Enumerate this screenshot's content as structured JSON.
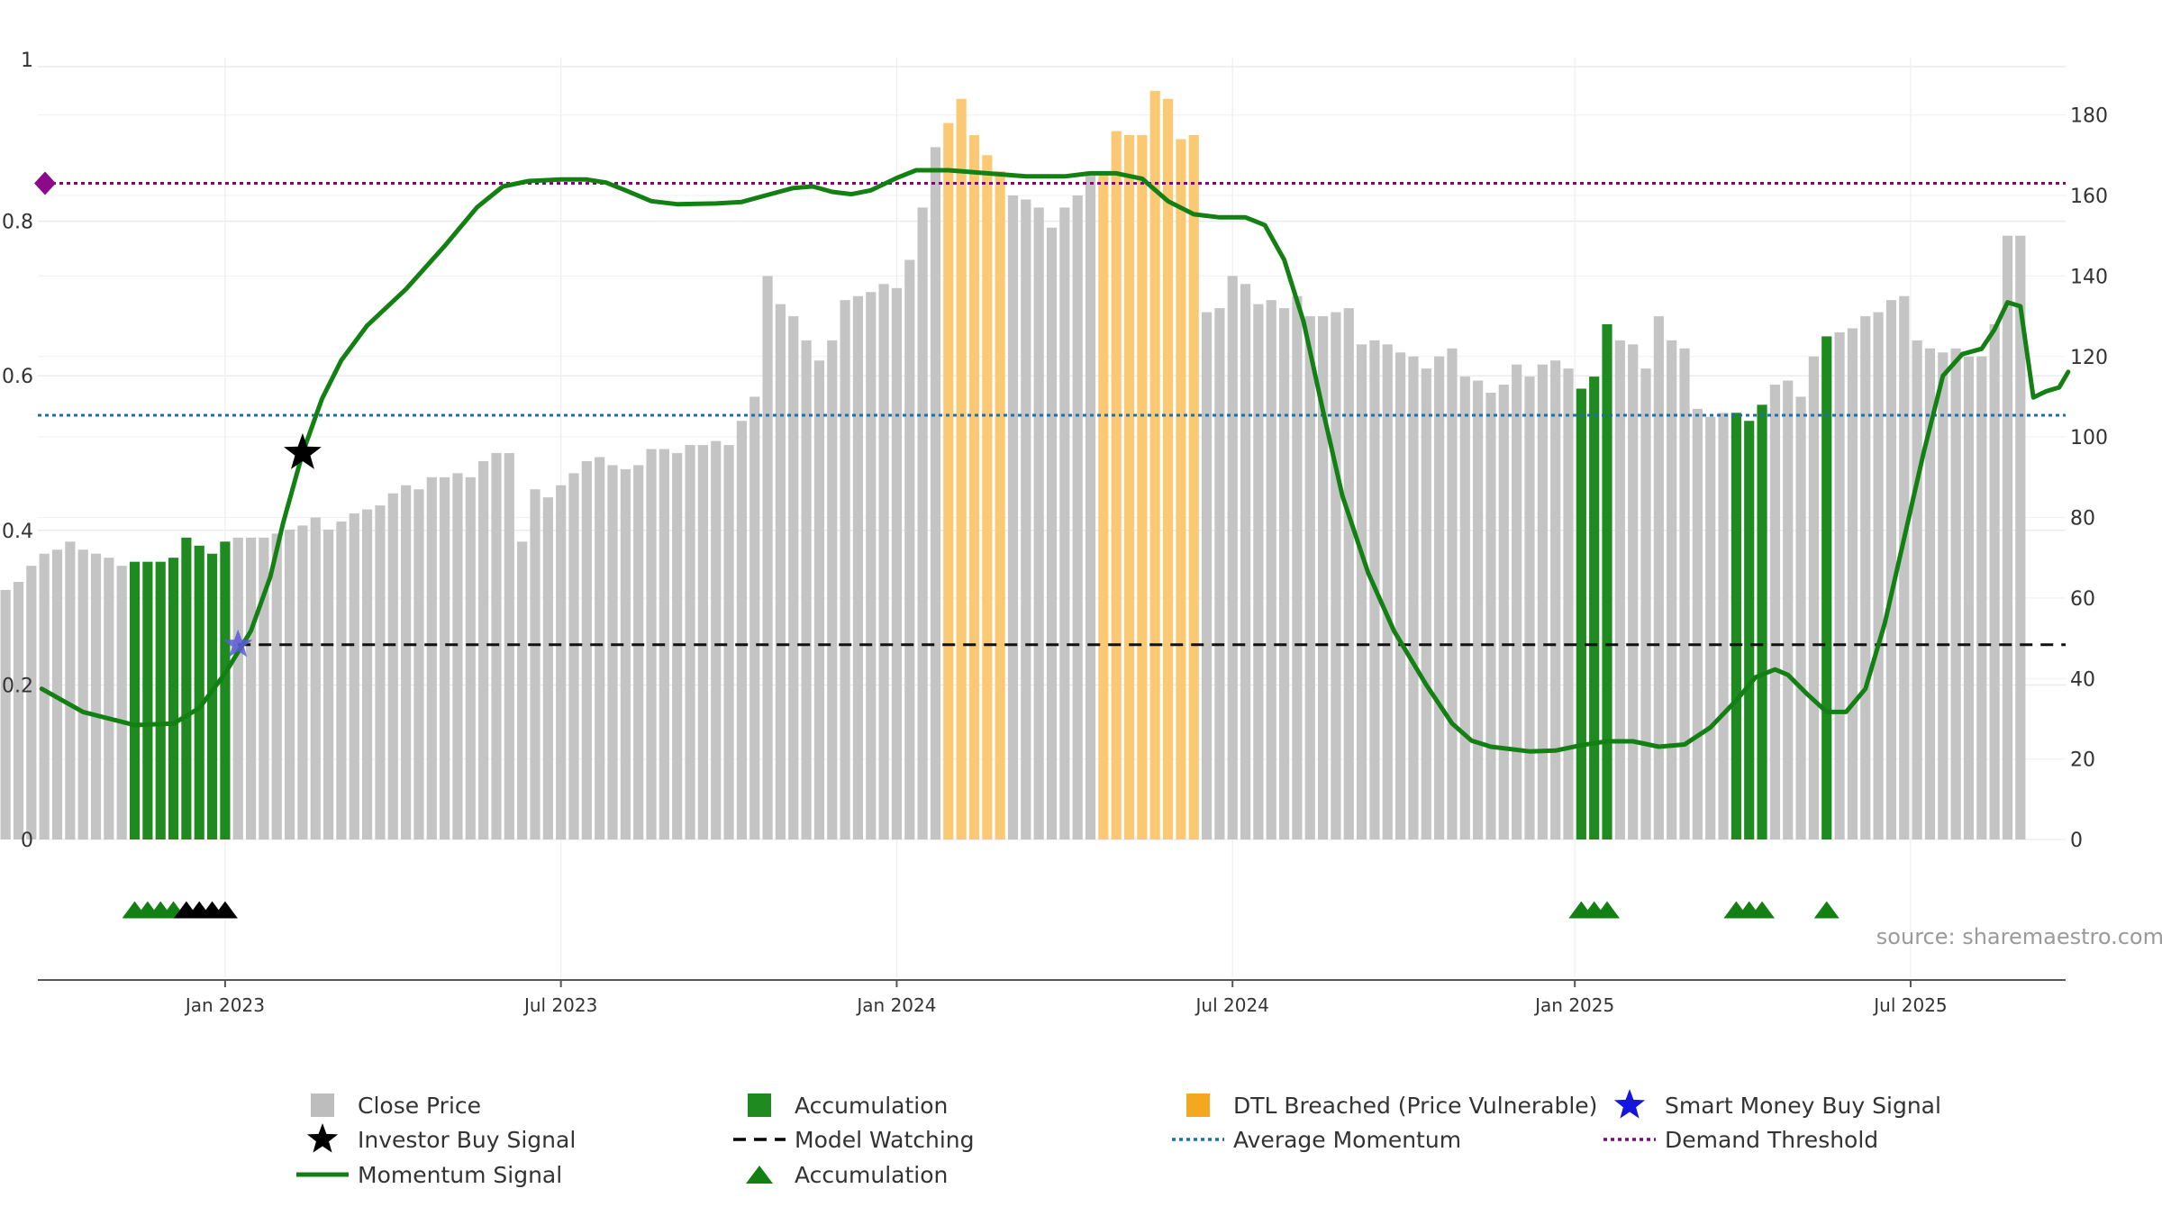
{
  "source_text": "source: sharemaestro.com",
  "chart_data": {
    "type": "bar",
    "left_axis": {
      "ticks": [
        0,
        0.2,
        0.4,
        0.6,
        0.8,
        1
      ],
      "labels": [
        "0",
        "0.2",
        "0.4",
        "0.6",
        "0.8",
        "1"
      ],
      "range": [
        0,
        1
      ]
    },
    "right_axis": {
      "ticks": [
        0,
        20,
        40,
        60,
        80,
        100,
        120,
        140,
        160,
        180
      ],
      "labels": [
        "0",
        "20",
        "40",
        "60",
        "80",
        "100",
        "120",
        "140",
        "160",
        "180"
      ],
      "range": [
        0,
        192
      ]
    },
    "x_ticks": [
      {
        "label": "Jan 2023",
        "week": 21
      },
      {
        "label": "Jul 2023",
        "week": 47
      },
      {
        "label": "Jan 2024",
        "week": 73
      },
      {
        "label": "Jul 2024",
        "week": 99
      },
      {
        "label": "Jan 2025",
        "week": 125.5
      },
      {
        "label": "Jul 2025",
        "week": 151.5
      }
    ],
    "x_range": [
      6.5,
      163.5
    ],
    "close_prices": [
      66,
      66,
      61,
      61,
      62,
      64,
      68,
      71,
      72,
      74,
      72,
      71,
      70,
      68,
      69,
      69,
      69,
      70,
      75,
      73,
      71,
      74,
      75,
      75,
      75,
      76,
      77,
      78,
      80,
      77,
      79,
      81,
      82,
      83,
      86,
      88,
      87,
      90,
      90,
      91,
      90,
      94,
      96,
      96,
      74,
      87,
      85,
      88,
      91,
      94,
      95,
      93,
      92,
      93,
      97,
      97,
      96,
      98,
      98,
      99,
      98,
      104,
      110,
      140,
      133,
      130,
      124,
      119,
      124,
      134,
      135,
      136,
      138,
      137,
      144,
      157,
      172,
      178,
      184,
      175,
      170,
      166,
      160,
      159,
      157,
      152,
      157,
      160,
      166,
      166,
      176,
      175,
      175,
      186,
      184,
      174,
      175,
      131,
      132,
      140,
      138,
      133,
      134,
      132,
      135,
      130,
      130,
      131,
      132,
      123,
      124,
      123,
      121,
      120,
      117,
      120,
      122,
      115,
      114,
      111,
      113,
      118,
      115,
      118,
      119,
      117,
      112,
      115,
      128,
      124,
      123,
      117,
      130,
      124,
      122,
      107,
      105,
      106,
      106,
      104,
      108,
      113,
      114,
      110,
      120,
      125,
      126,
      127,
      130,
      131,
      134,
      135,
      124,
      122,
      121,
      122,
      120,
      120,
      128,
      150,
      150
    ],
    "bar_categories": {
      "accumulation": [
        14,
        15,
        16,
        17,
        18,
        19,
        20,
        21,
        126,
        127,
        128,
        138,
        139,
        140,
        145
      ],
      "dtl_breached": [
        77,
        78,
        79,
        80,
        81,
        89,
        90,
        91,
        92,
        93,
        94,
        95,
        96
      ]
    },
    "momentum_signal": [
      [
        6.8,
        0.195
      ],
      [
        10,
        0.165
      ],
      [
        14,
        0.148
      ],
      [
        17,
        0.15
      ],
      [
        19,
        0.17
      ],
      [
        21,
        0.215
      ],
      [
        23,
        0.27
      ],
      [
        24.5,
        0.34
      ],
      [
        25.5,
        0.41
      ],
      [
        27,
        0.5
      ],
      [
        28.5,
        0.57
      ],
      [
        30,
        0.62
      ],
      [
        32,
        0.665
      ],
      [
        35,
        0.712
      ],
      [
        38,
        0.768
      ],
      [
        40.5,
        0.818
      ],
      [
        42.5,
        0.845
      ],
      [
        44.5,
        0.852
      ],
      [
        47,
        0.854
      ],
      [
        49,
        0.854
      ],
      [
        50.5,
        0.85
      ],
      [
        52,
        0.84
      ],
      [
        54,
        0.826
      ],
      [
        56,
        0.822
      ],
      [
        59,
        0.823
      ],
      [
        61,
        0.825
      ],
      [
        63,
        0.834
      ],
      [
        65,
        0.843
      ],
      [
        66.5,
        0.845
      ],
      [
        68,
        0.838
      ],
      [
        69.5,
        0.835
      ],
      [
        71,
        0.84
      ],
      [
        73,
        0.856
      ],
      [
        74.5,
        0.866
      ],
      [
        77,
        0.866
      ],
      [
        80,
        0.862
      ],
      [
        83,
        0.858
      ],
      [
        86,
        0.858
      ],
      [
        88,
        0.862
      ],
      [
        90,
        0.862
      ],
      [
        92,
        0.855
      ],
      [
        94,
        0.826
      ],
      [
        96,
        0.809
      ],
      [
        98,
        0.805
      ],
      [
        100,
        0.805
      ],
      [
        101.5,
        0.795
      ],
      [
        103,
        0.75
      ],
      [
        104.5,
        0.67
      ],
      [
        106,
        0.555
      ],
      [
        107.5,
        0.445
      ],
      [
        109.5,
        0.345
      ],
      [
        111.5,
        0.27
      ],
      [
        114,
        0.2
      ],
      [
        116,
        0.15
      ],
      [
        117.5,
        0.128
      ],
      [
        119,
        0.12
      ],
      [
        122,
        0.114
      ],
      [
        124,
        0.115
      ],
      [
        126,
        0.122
      ],
      [
        128,
        0.127
      ],
      [
        130,
        0.127
      ],
      [
        132,
        0.12
      ],
      [
        134,
        0.123
      ],
      [
        136,
        0.145
      ],
      [
        138,
        0.18
      ],
      [
        139.5,
        0.21
      ],
      [
        141,
        0.22
      ],
      [
        142,
        0.213
      ],
      [
        143.5,
        0.188
      ],
      [
        145,
        0.165
      ],
      [
        146.5,
        0.165
      ],
      [
        148,
        0.195
      ],
      [
        149.5,
        0.28
      ],
      [
        151,
        0.39
      ],
      [
        152.5,
        0.5
      ],
      [
        154,
        0.6
      ],
      [
        155.5,
        0.628
      ],
      [
        157,
        0.635
      ],
      [
        158,
        0.66
      ],
      [
        159,
        0.695
      ],
      [
        160,
        0.69
      ],
      [
        161,
        0.572
      ],
      [
        162,
        0.58
      ],
      [
        163,
        0.585
      ],
      [
        163.7,
        0.605
      ]
    ],
    "model_watching": {
      "value": 0.252,
      "from_week": 22
    },
    "average_momentum": 0.549,
    "demand_threshold": 0.849,
    "investor_buy_signals": [
      {
        "week": 27,
        "value": 0.5
      }
    ],
    "smart_money_buy_signals": [
      {
        "week": 22,
        "value": 0.252
      }
    ],
    "lower_markers": {
      "green_triangles": [
        14,
        15,
        16,
        17,
        126,
        127,
        128,
        138,
        139,
        140,
        145
      ],
      "black_triangles": [
        18,
        19,
        20,
        21
      ]
    },
    "legend": [
      {
        "label": "Close Price",
        "symbol": "gray-square",
        "color": "#bdbdbd"
      },
      {
        "label": "Accumulation",
        "symbol": "green-square",
        "color": "#1f8a1f"
      },
      {
        "label": "DTL Breached (Price Vulnerable)",
        "symbol": "orange-square",
        "color": "#f4a820"
      },
      {
        "label": "Smart Money Buy Signal",
        "symbol": "blue-star",
        "color": "#1515e0"
      },
      {
        "label": "Investor Buy Signal",
        "symbol": "black-star",
        "color": "#000000"
      },
      {
        "label": "Model Watching",
        "symbol": "dashed-line",
        "color": "#000000"
      },
      {
        "label": "Average Momentum",
        "symbol": "dotted-line-blue",
        "color": "#1f6fa5"
      },
      {
        "label": "Demand Threshold",
        "symbol": "dotted-line-purple",
        "color": "#7a0a7a"
      },
      {
        "label": "Momentum Signal",
        "symbol": "line-green",
        "color": "#138013"
      },
      {
        "label": "Accumulation",
        "symbol": "green-triangle",
        "color": "#138013"
      }
    ]
  }
}
